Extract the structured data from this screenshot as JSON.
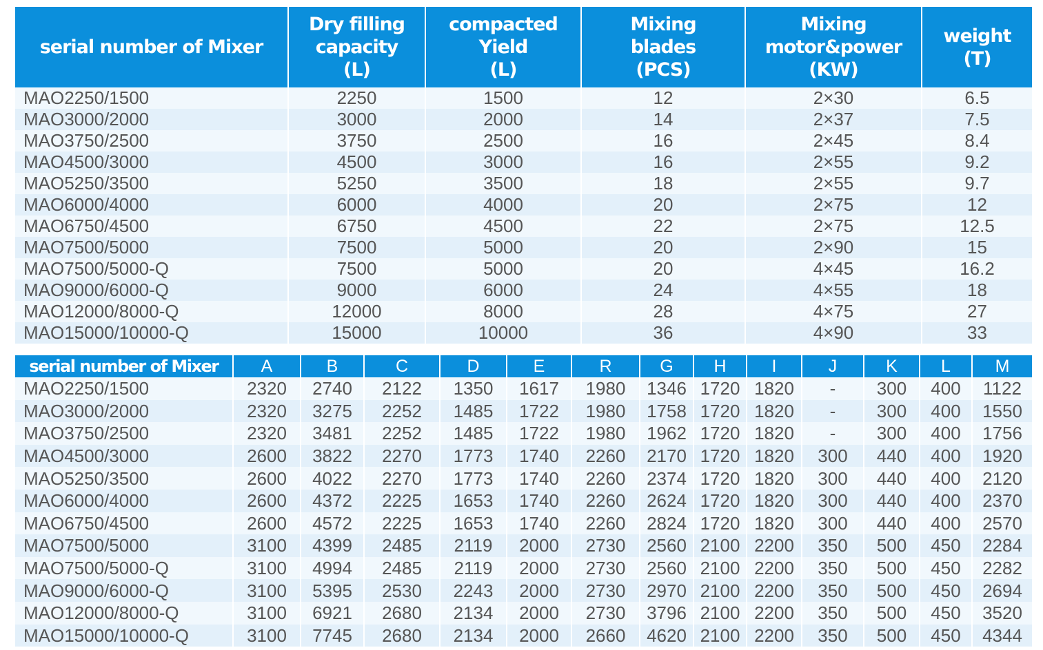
{
  "tables": [
    {
      "header": [
        [
          "serial number of Mixer"
        ],
        [
          "Dry filling",
          "capacity",
          "(L)"
        ],
        [
          "compacted",
          "Yield",
          "(L)"
        ],
        [
          "Mixing",
          "blades",
          "(PCS)"
        ],
        [
          "Mixing",
          "motor&power",
          "(KW)"
        ],
        [
          "weight",
          "(T)"
        ]
      ],
      "rows": [
        [
          "MAO2250/1500",
          "2250",
          "1500",
          "12",
          "2×30",
          "6.5"
        ],
        [
          "MAO3000/2000",
          "3000",
          "2000",
          "14",
          "2×37",
          "7.5"
        ],
        [
          "MAO3750/2500",
          "3750",
          "2500",
          "16",
          "2×45",
          "8.4"
        ],
        [
          "MAO4500/3000",
          "4500",
          "3000",
          "16",
          "2×55",
          "9.2"
        ],
        [
          "MAO5250/3500",
          "5250",
          "3500",
          "18",
          "2×55",
          "9.7"
        ],
        [
          "MAO6000/4000",
          "6000",
          "4000",
          "20",
          "2×75",
          "12"
        ],
        [
          "MAO6750/4500",
          "6750",
          "4500",
          "22",
          "2×75",
          "12.5"
        ],
        [
          "MAO7500/5000",
          "7500",
          "5000",
          "20",
          "2×90",
          "15"
        ],
        [
          "MAO7500/5000-Q",
          "7500",
          "5000",
          "20",
          "4×45",
          "16.2"
        ],
        [
          "MAO9000/6000-Q",
          "9000",
          "6000",
          "24",
          "4×55",
          "18"
        ],
        [
          "MAO12000/8000-Q",
          "12000",
          "8000",
          "28",
          "4×75",
          "27"
        ],
        [
          "MAO15000/10000-Q",
          "15000",
          "10000",
          "36",
          "4×90",
          "33"
        ]
      ]
    },
    {
      "header": [
        [
          "serial number of Mixer"
        ],
        [
          "A"
        ],
        [
          "B"
        ],
        [
          "C"
        ],
        [
          "D"
        ],
        [
          "E"
        ],
        [
          "R"
        ],
        [
          "G"
        ],
        [
          "H"
        ],
        [
          "I"
        ],
        [
          "J"
        ],
        [
          "K"
        ],
        [
          "L"
        ],
        [
          "M"
        ]
      ],
      "rows": [
        [
          "MAO2250/1500",
          "2320",
          "2740",
          "2122",
          "1350",
          "1617",
          "1980",
          "1346",
          "1720",
          "1820",
          "-",
          "300",
          "400",
          "1122"
        ],
        [
          "MAO3000/2000",
          "2320",
          "3275",
          "2252",
          "1485",
          "1722",
          "1980",
          "1758",
          "1720",
          "1820",
          "-",
          "300",
          "400",
          "1550"
        ],
        [
          "MAO3750/2500",
          "2320",
          "3481",
          "2252",
          "1485",
          "1722",
          "1980",
          "1962",
          "1720",
          "1820",
          "-",
          "300",
          "400",
          "1756"
        ],
        [
          "MAO4500/3000",
          "2600",
          "3822",
          "2270",
          "1773",
          "1740",
          "2260",
          "2170",
          "1720",
          "1820",
          "300",
          "440",
          "400",
          "1920"
        ],
        [
          "MAO5250/3500",
          "2600",
          "4022",
          "2270",
          "1773",
          "1740",
          "2260",
          "2374",
          "1720",
          "1820",
          "300",
          "440",
          "400",
          "2120"
        ],
        [
          "MAO6000/4000",
          "2600",
          "4372",
          "2225",
          "1653",
          "1740",
          "2260",
          "2624",
          "1720",
          "1820",
          "300",
          "440",
          "400",
          "2370"
        ],
        [
          "MAO6750/4500",
          "2600",
          "4572",
          "2225",
          "1653",
          "1740",
          "2260",
          "2824",
          "1720",
          "1820",
          "300",
          "440",
          "400",
          "2570"
        ],
        [
          "MAO7500/5000",
          "3100",
          "4399",
          "2485",
          "2119",
          "2000",
          "2730",
          "2560",
          "2100",
          "2200",
          "350",
          "500",
          "450",
          "2284"
        ],
        [
          "MAO7500/5000-Q",
          "3100",
          "4994",
          "2485",
          "2119",
          "2000",
          "2730",
          "2560",
          "2100",
          "2200",
          "350",
          "500",
          "450",
          "2282"
        ],
        [
          "MAO9000/6000-Q",
          "3100",
          "5395",
          "2530",
          "2243",
          "2000",
          "2730",
          "2970",
          "2100",
          "2200",
          "350",
          "500",
          "450",
          "2694"
        ],
        [
          "MAO12000/8000-Q",
          "3100",
          "6921",
          "2680",
          "2134",
          "2000",
          "2730",
          "3796",
          "2100",
          "2200",
          "350",
          "500",
          "450",
          "3520"
        ],
        [
          "MAO15000/10000-Q",
          "3100",
          "7745",
          "2680",
          "2134",
          "2000",
          "2660",
          "4620",
          "2100",
          "2200",
          "350",
          "500",
          "450",
          "4344"
        ]
      ]
    }
  ]
}
